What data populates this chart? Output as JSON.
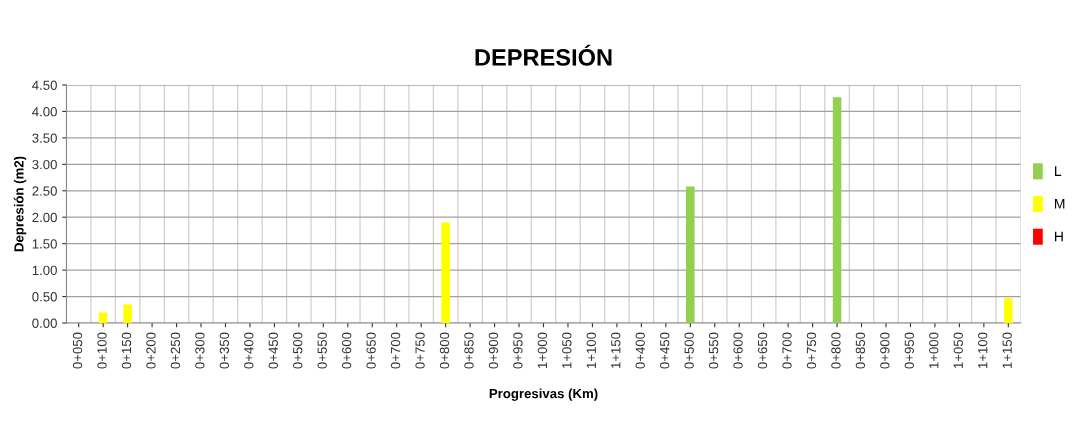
{
  "chart_data": {
    "type": "bar",
    "title": "DEPRESIÓN",
    "xlabel": "Progresivas (Km)",
    "ylabel": "Depresión (m2)",
    "categories": [
      "0+050",
      "0+100",
      "0+150",
      "0+200",
      "0+250",
      "0+300",
      "0+350",
      "0+400",
      "0+450",
      "0+500",
      "0+550",
      "0+600",
      "0+650",
      "0+700",
      "0+750",
      "0+800",
      "0+850",
      "0+900",
      "0+950",
      "1+000",
      "1+050",
      "1+100",
      "1+150",
      "0+400",
      "0+450",
      "0+500",
      "0+550",
      "0+600",
      "0+650",
      "0+700",
      "0+750",
      "0+800",
      "0+850",
      "0+900",
      "0+950",
      "1+000",
      "1+050",
      "1+100",
      "1+150"
    ],
    "series": [
      {
        "name": "L",
        "color": "#92d050",
        "values": [
          null,
          null,
          null,
          null,
          null,
          null,
          null,
          null,
          null,
          null,
          null,
          null,
          null,
          null,
          null,
          null,
          null,
          null,
          null,
          null,
          null,
          null,
          null,
          null,
          null,
          2.58,
          null,
          null,
          null,
          null,
          null,
          4.27,
          null,
          null,
          null,
          null,
          null,
          null,
          null
        ]
      },
      {
        "name": "M",
        "color": "#ffff00",
        "values": [
          null,
          0.2,
          0.35,
          null,
          null,
          null,
          null,
          null,
          null,
          null,
          null,
          null,
          null,
          null,
          null,
          1.9,
          null,
          null,
          null,
          null,
          null,
          null,
          null,
          null,
          null,
          null,
          null,
          null,
          null,
          null,
          null,
          null,
          null,
          null,
          null,
          null,
          null,
          null,
          0.47
        ]
      },
      {
        "name": "H",
        "color": "#ff0000",
        "values": [
          null,
          null,
          null,
          null,
          null,
          null,
          null,
          null,
          null,
          null,
          null,
          null,
          null,
          null,
          null,
          null,
          null,
          null,
          null,
          null,
          null,
          null,
          null,
          null,
          null,
          null,
          null,
          null,
          null,
          null,
          null,
          null,
          null,
          null,
          null,
          null,
          null,
          null,
          null
        ]
      }
    ],
    "ylim": [
      0,
      4.5
    ],
    "yticks": [
      {
        "value": 0,
        "label": "0.00"
      },
      {
        "value": 0.5,
        "label": "0.50"
      },
      {
        "value": 1,
        "label": "1.00"
      },
      {
        "value": 1.5,
        "label": "1.50"
      },
      {
        "value": 2,
        "label": "2.00"
      },
      {
        "value": 2.5,
        "label": "2.50"
      },
      {
        "value": 3,
        "label": "3.00"
      },
      {
        "value": 3.5,
        "label": "3.50"
      },
      {
        "value": 4,
        "label": "4.00"
      },
      {
        "value": 4.5,
        "label": "4.50"
      }
    ],
    "grid": true,
    "legend": "right"
  }
}
